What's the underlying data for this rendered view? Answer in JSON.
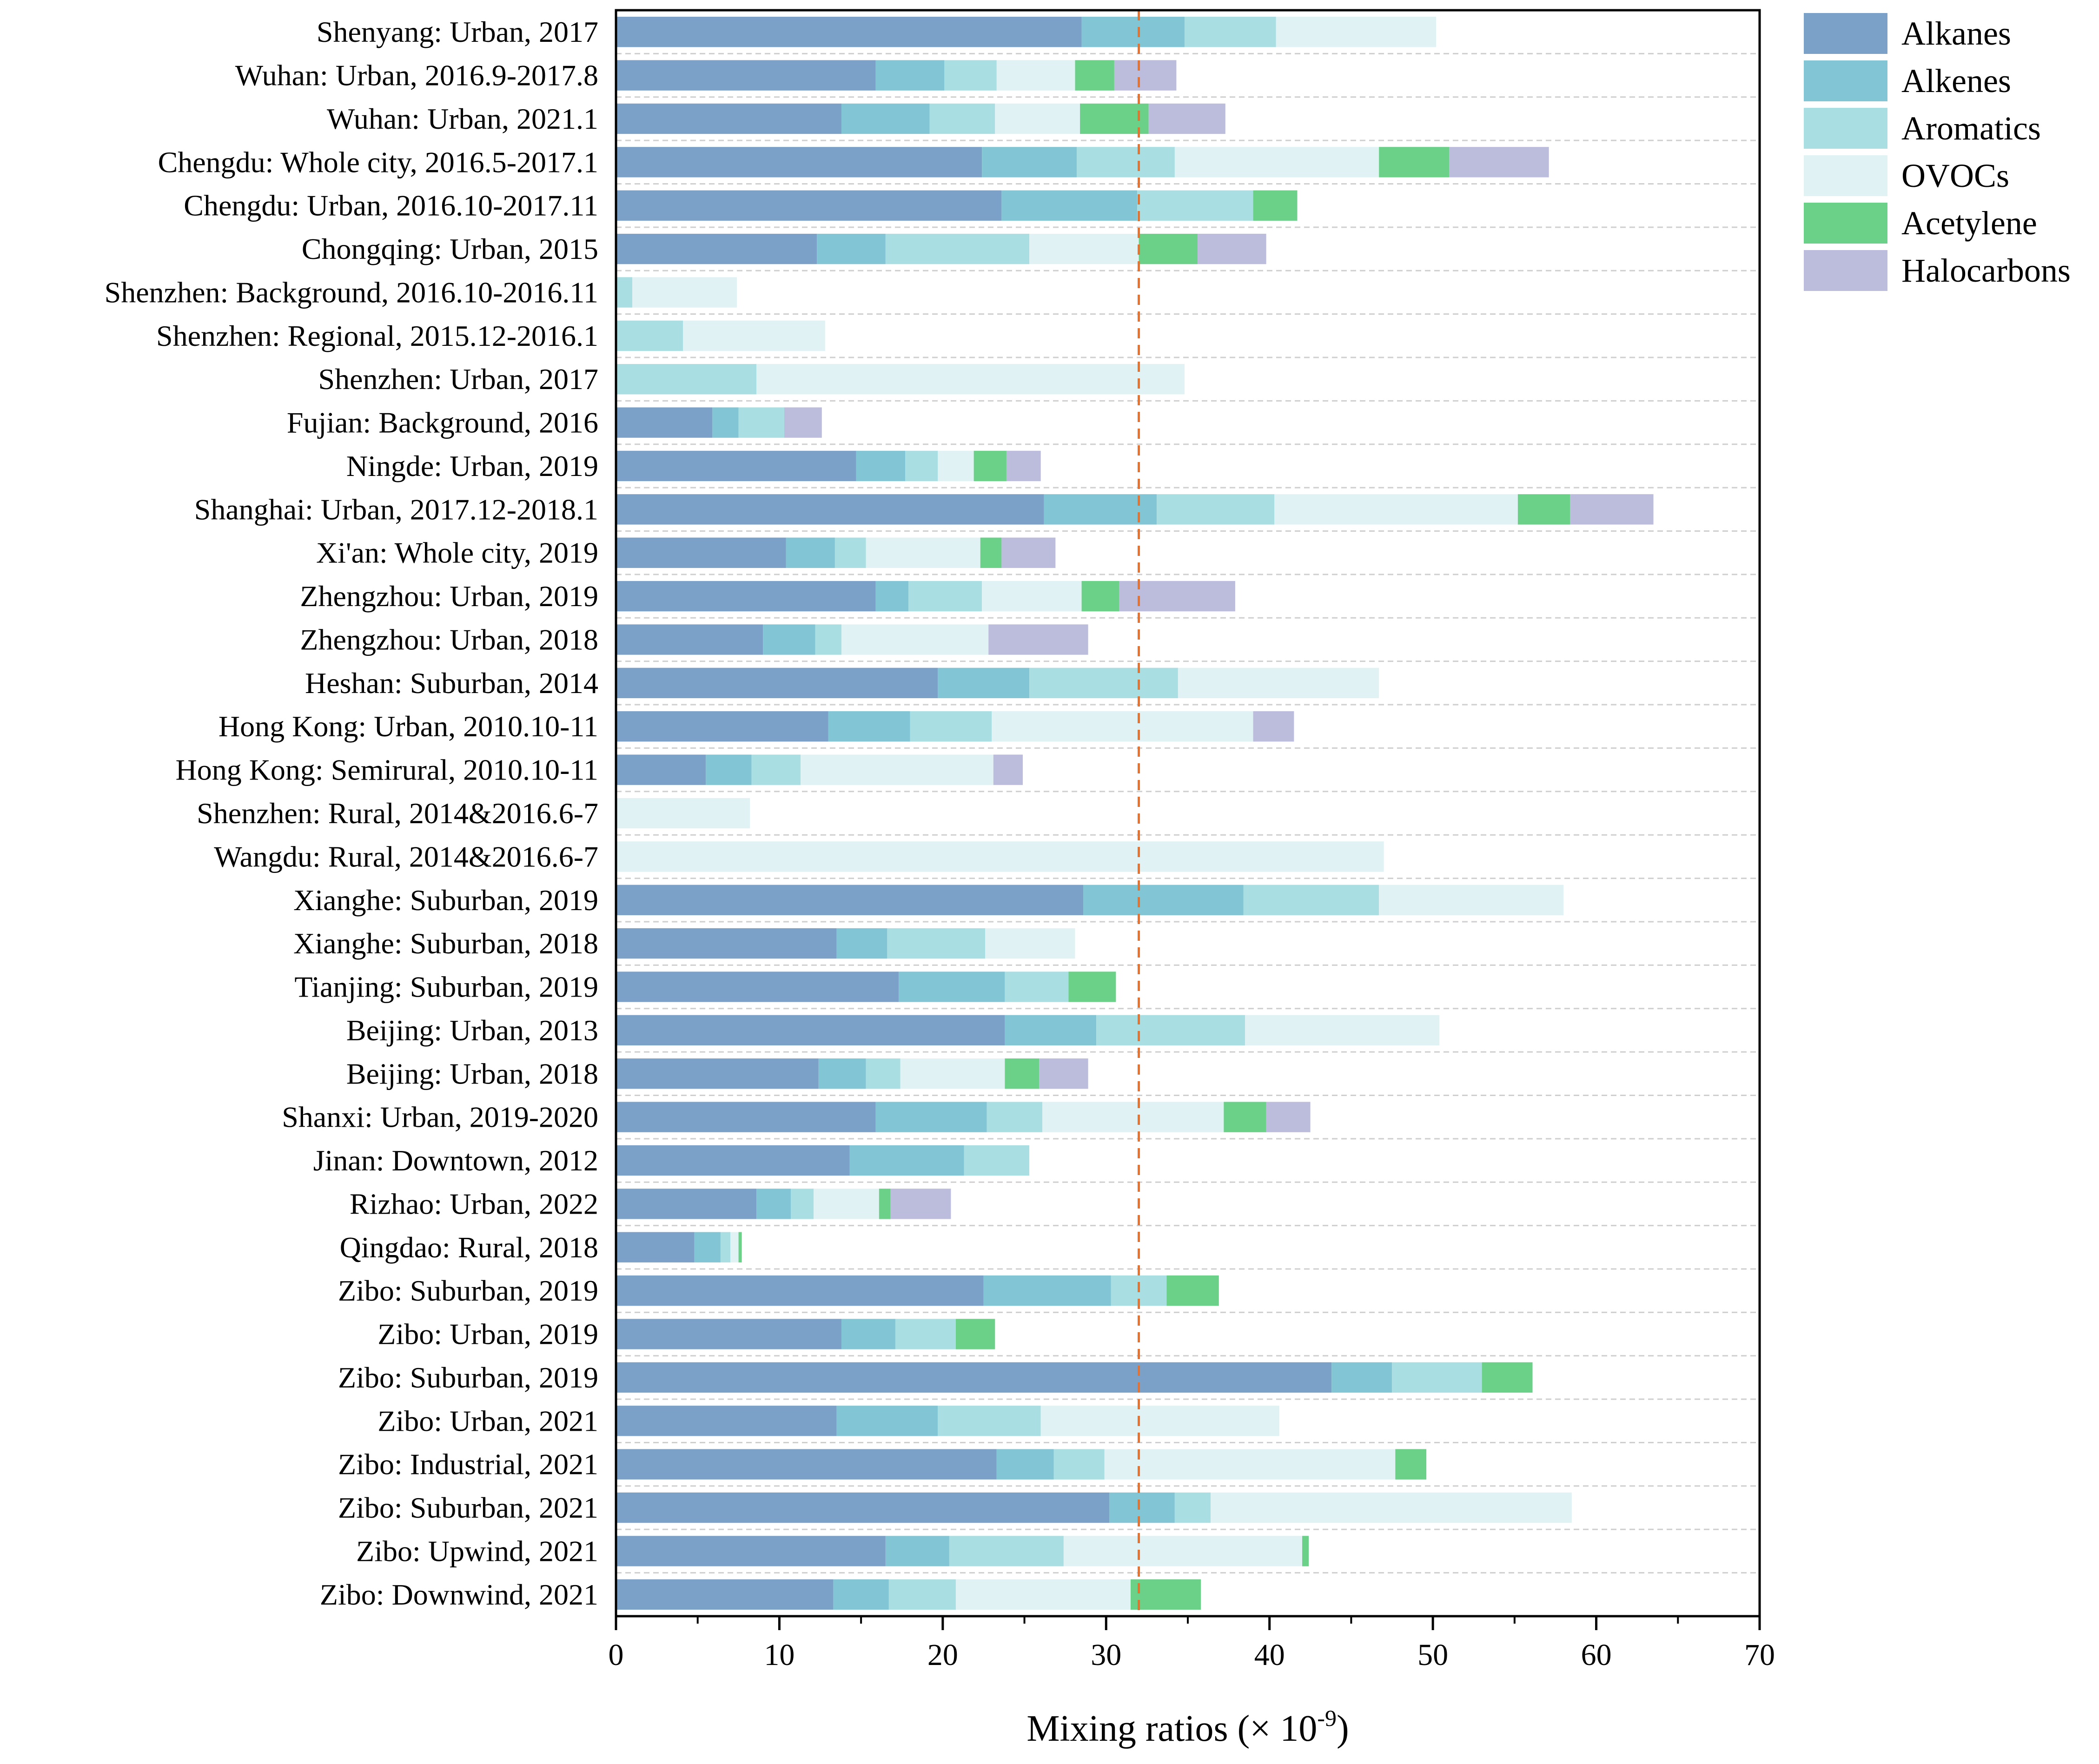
{
  "chart_data": {
    "type": "bar",
    "orientation": "horizontal",
    "stacked": true,
    "xlabel": "Mixing ratios (× 10",
    "xlabel_exponent": "-9",
    "xlabel_close": ")",
    "xlim": [
      0,
      70
    ],
    "xticks": [
      "0",
      "10",
      "20",
      "30",
      "40",
      "50",
      "60",
      "70"
    ],
    "grid": "horizontal dashed",
    "reference_line": {
      "x": 32,
      "style": "dashed",
      "color": "#e8722c"
    },
    "legend_position": "top-right, outside plot",
    "categories": [
      "Shenyang:  Urban, 2017",
      "Wuhan:  Urban, 2016.9-2017.8",
      "Wuhan:  Urban, 2021.1",
      "Chengdu:  Whole city, 2016.5-2017.1",
      "Chengdu:  Urban, 2016.10-2017.11",
      "Chongqing:  Urban, 2015",
      "Shenzhen:  Background, 2016.10-2016.11",
      "Shenzhen:  Regional, 2015.12-2016.1",
      "Shenzhen:  Urban, 2017",
      "Fujian:  Background, 2016",
      "Ningde:  Urban, 2019",
      "Shanghai:  Urban, 2017.12-2018.1",
      "Xi'an:  Whole city, 2019",
      "Zhengzhou:  Urban, 2019",
      "Zhengzhou:  Urban, 2018",
      "Heshan:  Suburban, 2014",
      "Hong Kong:  Urban, 2010.10-11",
      "Hong Kong:  Semirural, 2010.10-11",
      "Shenzhen:  Rural, 2014&2016.6-7",
      "Wangdu:  Rural, 2014&2016.6-7",
      "Xianghe:  Suburban, 2019",
      "Xianghe:  Suburban, 2018",
      "Tianjing:  Suburban, 2019",
      "Beijing:  Urban, 2013",
      "Beijing:  Urban, 2018",
      "Shanxi:  Urban, 2019-2020",
      "Jinan:  Downtown, 2012",
      "Rizhao:  Urban, 2022",
      "Qingdao:  Rural, 2018",
      "Zibo:  Suburban, 2019",
      "Zibo:  Urban, 2019",
      "Zibo:  Suburban, 2019",
      "Zibo:  Urban, 2021",
      "Zibo:  Industrial, 2021",
      "Zibo:  Suburban, 2021",
      "Zibo:  Upwind, 2021",
      "Zibo:  Downwind, 2021"
    ],
    "series": [
      {
        "name": "Alkanes",
        "color": "#7ca1c9",
        "values": [
          28.5,
          15.9,
          13.8,
          22.4,
          23.6,
          12.3,
          0,
          0,
          0,
          5.9,
          14.7,
          26.2,
          10.4,
          15.9,
          9.0,
          19.7,
          13.0,
          5.5,
          0,
          0,
          28.6,
          13.5,
          17.3,
          23.8,
          12.4,
          15.9,
          14.3,
          8.6,
          4.8,
          22.5,
          13.8,
          43.8,
          13.5,
          23.3,
          30.2,
          16.5,
          13.3
        ]
      },
      {
        "name": "Alkenes",
        "color": "#82c5d4",
        "values": [
          6.3,
          4.2,
          5.4,
          5.8,
          8.3,
          4.2,
          0,
          0,
          0,
          1.6,
          3.0,
          6.9,
          3.0,
          2.0,
          3.2,
          5.6,
          5.0,
          2.8,
          0,
          0,
          9.8,
          3.1,
          6.5,
          5.6,
          2.9,
          6.8,
          7.0,
          2.1,
          1.6,
          7.8,
          3.3,
          3.7,
          6.2,
          3.5,
          4.0,
          3.9,
          3.4
        ]
      },
      {
        "name": "Aromatics",
        "color": "#a9dfe2",
        "values": [
          5.6,
          3.2,
          4.0,
          6.0,
          7.1,
          8.8,
          1.0,
          4.1,
          8.6,
          2.8,
          2.0,
          7.2,
          1.9,
          4.5,
          1.6,
          9.1,
          5.0,
          3.0,
          0,
          0,
          8.3,
          6.0,
          3.9,
          9.1,
          2.1,
          3.4,
          4.0,
          1.4,
          0.6,
          3.4,
          3.7,
          5.5,
          6.3,
          3.1,
          2.2,
          7.0,
          4.1
        ]
      },
      {
        "name": "OVOCs",
        "color": "#e1f2f4",
        "values": [
          9.8,
          4.8,
          5.2,
          12.5,
          0,
          6.7,
          6.4,
          8.7,
          26.2,
          0,
          2.2,
          14.9,
          7.0,
          6.1,
          9.0,
          12.3,
          16.0,
          11.8,
          8.2,
          47.0,
          11.3,
          5.5,
          0,
          11.9,
          6.4,
          11.1,
          0,
          4.0,
          0.5,
          0,
          0,
          0,
          14.6,
          17.8,
          22.1,
          14.6,
          10.7
        ]
      },
      {
        "name": "Acetylene",
        "color": "#6bd088",
        "values": [
          0,
          2.4,
          4.2,
          4.3,
          2.7,
          3.6,
          0,
          0,
          0,
          0,
          2.0,
          3.2,
          1.3,
          2.3,
          0,
          0,
          0,
          0,
          0,
          0,
          0,
          0,
          2.9,
          0,
          2.1,
          2.6,
          0,
          0.7,
          0.2,
          3.2,
          2.4,
          3.1,
          0,
          1.9,
          0,
          0.4,
          4.3
        ]
      },
      {
        "name": "Halocarbons",
        "color": "#bcbcdc",
        "values": [
          0,
          3.8,
          4.7,
          6.1,
          0,
          4.2,
          0,
          0,
          0,
          2.3,
          2.1,
          5.1,
          3.3,
          7.1,
          6.1,
          0,
          2.5,
          1.8,
          0,
          0,
          0,
          0,
          0,
          0,
          3.0,
          2.7,
          0,
          3.7,
          0,
          0,
          0,
          0,
          0,
          0,
          0,
          0,
          0
        ]
      }
    ]
  }
}
